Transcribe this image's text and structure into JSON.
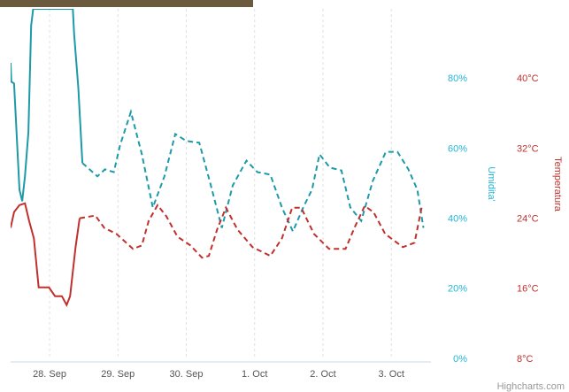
{
  "chart_data": {
    "type": "line",
    "xticks": [
      {
        "value": 0,
        "label": "28. Sep"
      },
      {
        "value": 1,
        "label": "29. Sep"
      },
      {
        "value": 2,
        "label": "30. Sep"
      },
      {
        "value": 3,
        "label": "1. Oct"
      },
      {
        "value": 4,
        "label": "2. Oct"
      },
      {
        "value": 5,
        "label": "3. Oct"
      }
    ],
    "xlim": [
      -0.57,
      5.58
    ],
    "ylabel": "Umidita'",
    "ylim": [
      0,
      100
    ],
    "yticks": [
      {
        "value": 0,
        "label": "0%"
      },
      {
        "value": 20,
        "label": "20%"
      },
      {
        "value": 40,
        "label": "40%"
      },
      {
        "value": 60,
        "label": "60%"
      },
      {
        "value": 80,
        "label": "80%"
      }
    ],
    "y2label": "Temperatura",
    "y2lim": [
      8,
      48
    ],
    "y2ticks": [
      {
        "value": 8,
        "label": "8°C"
      },
      {
        "value": 16,
        "label": "16°C"
      },
      {
        "value": 24,
        "label": "24°C"
      },
      {
        "value": 32,
        "label": "32°C"
      },
      {
        "value": 40,
        "label": "40°C"
      }
    ],
    "xgrid": true,
    "credits": "Highcharts.com",
    "series": [
      {
        "color": "#1d9aa8",
        "dash": false,
        "x": [
          -0.57,
          -0.56,
          -0.52,
          -0.44,
          -0.4,
          -0.36,
          -0.31,
          -0.27,
          -0.24,
          0.34,
          0.36,
          0.42,
          0.48
        ],
        "values": [
          84.6,
          79.2,
          78.7,
          48.4,
          45.1,
          52.2,
          64.8,
          95.2,
          100,
          100,
          92.7,
          77.5,
          56.0
        ]
      },
      {
        "color": "#1d9aa8",
        "dash": true,
        "x": [
          0.48,
          0.7,
          0.81,
          0.94,
          1.03,
          1.19,
          1.35,
          1.51,
          1.68,
          1.84,
          2.0,
          2.19,
          2.36,
          2.52,
          2.68,
          2.88,
          3.04,
          3.23,
          3.4,
          3.56,
          3.71,
          3.84,
          3.95,
          4.1,
          4.27,
          4.4,
          4.56,
          4.73,
          4.92,
          5.09,
          5.25,
          5.38,
          5.47
        ],
        "values": [
          56.0,
          52.2,
          54.2,
          53.4,
          61.0,
          70.6,
          58.5,
          43.3,
          52.2,
          64.3,
          62.3,
          61.8,
          49.6,
          37.5,
          49.6,
          56.7,
          53.4,
          52.7,
          43.3,
          36.5,
          43.3,
          48.4,
          58.5,
          54.7,
          53.9,
          43.3,
          39.5,
          50.9,
          59.2,
          59.2,
          54.2,
          48.4,
          37.5
        ]
      },
      {
        "color": "#c0302c",
        "dash": false,
        "axis": "y2",
        "x": [
          -0.57,
          -0.52,
          -0.44,
          -0.36,
          -0.3,
          -0.23,
          -0.16,
          -0.01,
          0.08,
          0.18,
          0.25,
          0.3,
          0.38,
          0.44
        ],
        "values": [
          23.0,
          24.8,
          25.6,
          25.8,
          23.8,
          21.8,
          16.2,
          16.2,
          15.2,
          15.2,
          14.2,
          15.2,
          20.8,
          24.1
        ]
      },
      {
        "color": "#c0302c",
        "dash": true,
        "axis": "y2",
        "x": [
          0.44,
          0.67,
          0.8,
          0.98,
          1.22,
          1.35,
          1.45,
          1.58,
          1.71,
          1.87,
          2.06,
          2.23,
          2.33,
          2.45,
          2.58,
          2.75,
          2.97,
          3.23,
          3.4,
          3.55,
          3.68,
          3.87,
          4.09,
          4.33,
          4.46,
          4.61,
          4.74,
          4.91,
          5.17,
          5.34,
          5.45
        ],
        "values": [
          24.1,
          24.4,
          23.0,
          22.3,
          20.6,
          21.0,
          23.8,
          25.6,
          24.3,
          22.0,
          21.0,
          19.6,
          19.8,
          22.8,
          25.3,
          22.8,
          20.8,
          19.8,
          21.8,
          25.3,
          25.3,
          22.3,
          20.6,
          20.6,
          23.0,
          25.5,
          24.8,
          22.3,
          20.8,
          21.3,
          25.6
        ]
      }
    ]
  }
}
